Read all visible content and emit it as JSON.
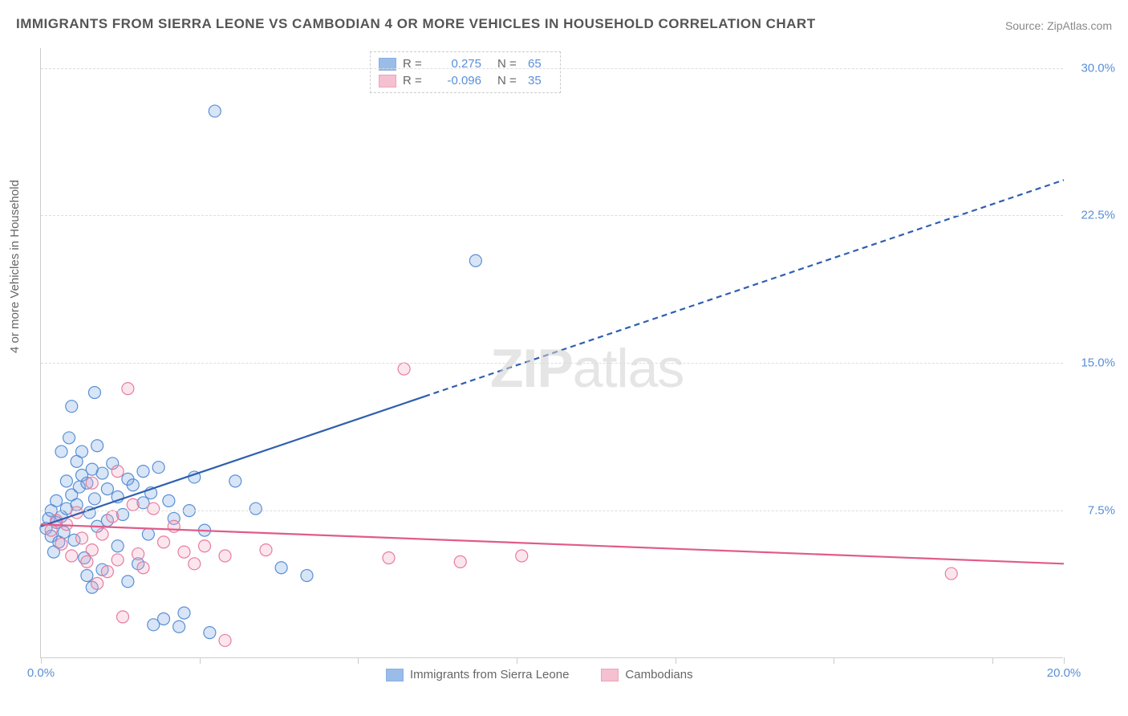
{
  "title": "IMMIGRANTS FROM SIERRA LEONE VS CAMBODIAN 4 OR MORE VEHICLES IN HOUSEHOLD CORRELATION CHART",
  "source": "Source: ZipAtlas.com",
  "ylabel": "4 or more Vehicles in Household",
  "watermark_zip": "ZIP",
  "watermark_atlas": "atlas",
  "chart": {
    "type": "scatter",
    "xlim": [
      0,
      20
    ],
    "ylim": [
      0,
      31
    ],
    "xtick_positions": [
      0,
      3.1,
      6.2,
      9.3,
      12.4,
      15.5,
      18.6,
      20
    ],
    "xtick_labels": {
      "0": "0.0%",
      "20": "20.0%"
    },
    "ytick_positions": [
      7.5,
      15.0,
      22.5,
      30.0
    ],
    "ytick_labels": [
      "7.5%",
      "15.0%",
      "22.5%",
      "30.0%"
    ],
    "background_color": "#ffffff",
    "grid_color": "#dddddd",
    "axis_color": "#cccccc",
    "tick_label_color": "#5a8fd6",
    "tick_fontsize": 15,
    "marker_radius": 7.5,
    "marker_stroke_width": 1.2,
    "marker_fill_opacity": 0.28,
    "trend_line_width": 2.2,
    "trend_dash_pattern": "7,5"
  },
  "series": [
    {
      "name": "Immigrants from Sierra Leone",
      "color": "#6fa0e0",
      "stroke": "#5a8fd6",
      "trend_color": "#2f5fb0",
      "R": "0.275",
      "N": "65",
      "trend": {
        "x1": 0,
        "y1": 6.7,
        "x2_solid": 7.5,
        "y2_solid": 13.3,
        "x2_dashed": 20,
        "y2_dashed": 24.3
      },
      "points": [
        [
          0.1,
          6.6
        ],
        [
          0.15,
          7.1
        ],
        [
          0.2,
          6.2
        ],
        [
          0.2,
          7.5
        ],
        [
          0.25,
          5.4
        ],
        [
          0.3,
          6.9
        ],
        [
          0.3,
          8.0
        ],
        [
          0.35,
          5.9
        ],
        [
          0.4,
          10.5
        ],
        [
          0.4,
          7.2
        ],
        [
          0.45,
          6.4
        ],
        [
          0.5,
          9.0
        ],
        [
          0.5,
          7.6
        ],
        [
          0.55,
          11.2
        ],
        [
          0.6,
          8.3
        ],
        [
          0.6,
          12.8
        ],
        [
          0.65,
          6.0
        ],
        [
          0.7,
          7.8
        ],
        [
          0.7,
          10.0
        ],
        [
          0.75,
          8.7
        ],
        [
          0.8,
          9.3
        ],
        [
          0.8,
          10.5
        ],
        [
          0.85,
          5.1
        ],
        [
          0.9,
          4.2
        ],
        [
          0.9,
          8.9
        ],
        [
          0.95,
          7.4
        ],
        [
          1.0,
          9.6
        ],
        [
          1.0,
          3.6
        ],
        [
          1.05,
          8.1
        ],
        [
          1.1,
          6.7
        ],
        [
          1.1,
          10.8
        ],
        [
          1.2,
          4.5
        ],
        [
          1.2,
          9.4
        ],
        [
          1.3,
          7.0
        ],
        [
          1.3,
          8.6
        ],
        [
          1.4,
          9.9
        ],
        [
          1.5,
          8.2
        ],
        [
          1.5,
          5.7
        ],
        [
          1.6,
          7.3
        ],
        [
          1.7,
          9.1
        ],
        [
          1.7,
          3.9
        ],
        [
          1.8,
          8.8
        ],
        [
          1.9,
          4.8
        ],
        [
          2.0,
          9.5
        ],
        [
          2.0,
          7.9
        ],
        [
          2.1,
          6.3
        ],
        [
          2.15,
          8.4
        ],
        [
          2.2,
          1.7
        ],
        [
          2.3,
          9.7
        ],
        [
          2.4,
          2.0
        ],
        [
          2.5,
          8.0
        ],
        [
          2.6,
          7.1
        ],
        [
          2.7,
          1.6
        ],
        [
          2.8,
          2.3
        ],
        [
          2.9,
          7.5
        ],
        [
          3.0,
          9.2
        ],
        [
          3.2,
          6.5
        ],
        [
          3.3,
          1.3
        ],
        [
          3.4,
          27.8
        ],
        [
          3.8,
          9.0
        ],
        [
          4.2,
          7.6
        ],
        [
          4.7,
          4.6
        ],
        [
          5.2,
          4.2
        ],
        [
          8.5,
          20.2
        ],
        [
          1.05,
          13.5
        ]
      ]
    },
    {
      "name": "Cambodians",
      "color": "#f2a6bd",
      "stroke": "#e77ca0",
      "trend_color": "#e05c8a",
      "R": "-0.096",
      "N": "35",
      "trend": {
        "x1": 0,
        "y1": 6.8,
        "x2_solid": 20,
        "y2_solid": 4.8,
        "x2_dashed": 20,
        "y2_dashed": 4.8
      },
      "points": [
        [
          0.2,
          6.5
        ],
        [
          0.3,
          7.0
        ],
        [
          0.4,
          5.8
        ],
        [
          0.5,
          6.8
        ],
        [
          0.6,
          5.2
        ],
        [
          0.7,
          7.4
        ],
        [
          0.8,
          6.1
        ],
        [
          0.9,
          4.9
        ],
        [
          1.0,
          5.5
        ],
        [
          1.0,
          8.9
        ],
        [
          1.1,
          3.8
        ],
        [
          1.2,
          6.3
        ],
        [
          1.3,
          4.4
        ],
        [
          1.4,
          7.2
        ],
        [
          1.5,
          5.0
        ],
        [
          1.6,
          2.1
        ],
        [
          1.7,
          13.7
        ],
        [
          1.8,
          7.8
        ],
        [
          1.9,
          5.3
        ],
        [
          2.0,
          4.6
        ],
        [
          2.2,
          7.6
        ],
        [
          2.4,
          5.9
        ],
        [
          2.6,
          6.7
        ],
        [
          2.8,
          5.4
        ],
        [
          3.0,
          4.8
        ],
        [
          3.2,
          5.7
        ],
        [
          3.6,
          5.2
        ],
        [
          3.6,
          0.9
        ],
        [
          4.4,
          5.5
        ],
        [
          6.8,
          5.1
        ],
        [
          7.1,
          14.7
        ],
        [
          8.2,
          4.9
        ],
        [
          9.4,
          5.2
        ],
        [
          17.8,
          4.3
        ],
        [
          1.5,
          9.5
        ]
      ]
    }
  ],
  "legend_top": {
    "R_label": "R =",
    "N_label": "N ="
  },
  "legend_bottom": {
    "series1_label": "Immigrants from Sierra Leone",
    "series2_label": "Cambodians"
  }
}
